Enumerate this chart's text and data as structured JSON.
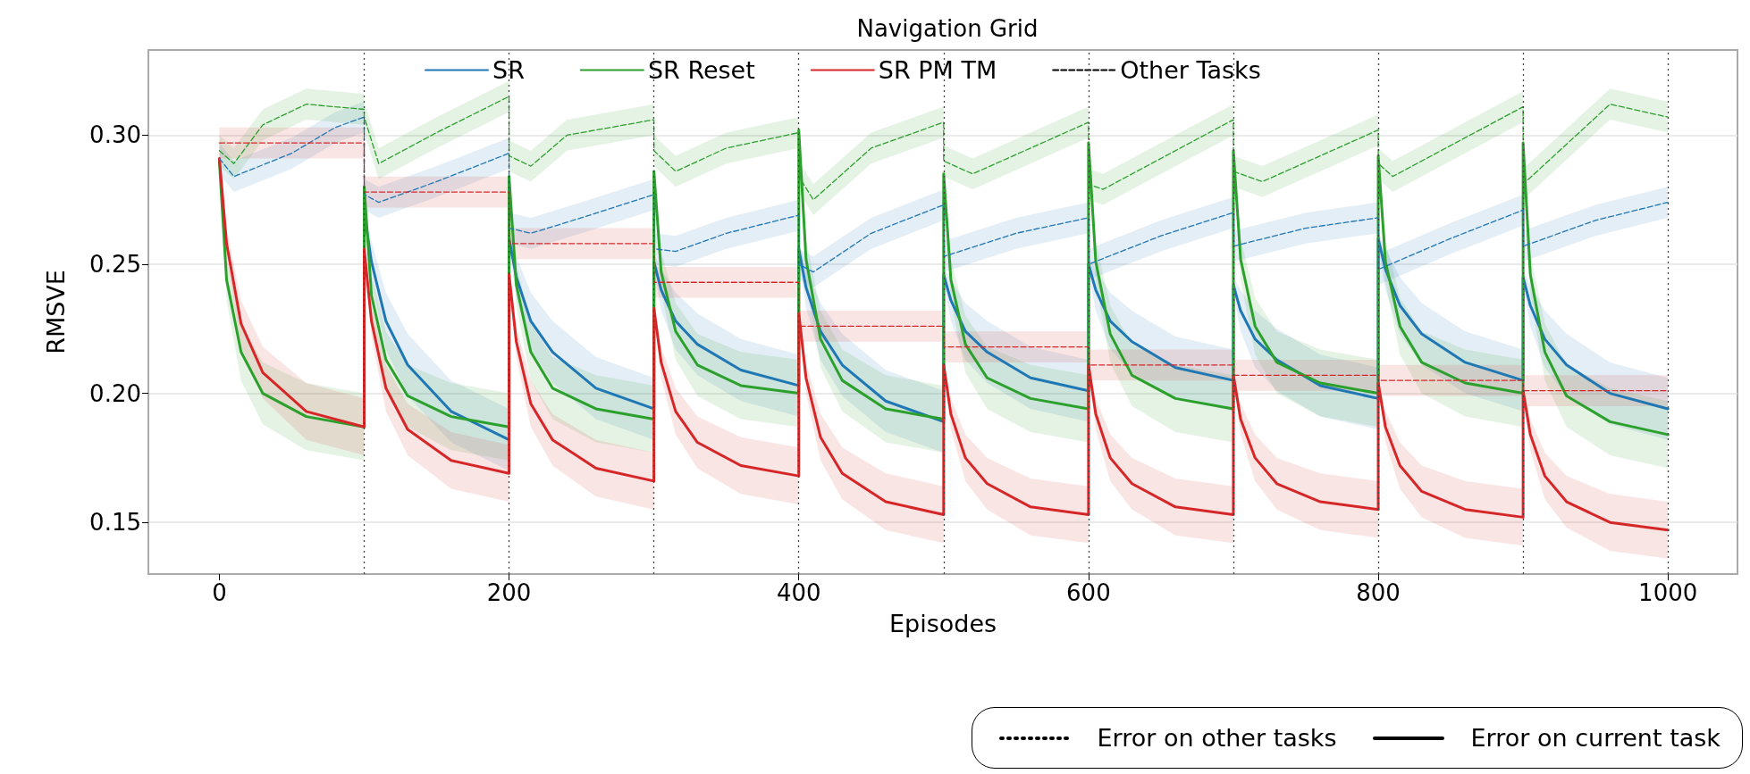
{
  "chart_data": {
    "type": "line",
    "title": "Navigation Grid",
    "xlabel": "Episodes",
    "ylabel": "RMSVE",
    "xlim": [
      -49,
      1048
    ],
    "xticks": [
      0,
      200,
      400,
      600,
      800,
      1000
    ],
    "ylim": [
      0.13,
      0.333
    ],
    "yticks": [
      {
        "value": 0.15,
        "label": "0.15"
      },
      {
        "value": 0.2,
        "label": "0.20"
      },
      {
        "value": 0.25,
        "label": "0.25"
      },
      {
        "value": 0.3,
        "label": "0.30"
      }
    ],
    "grid": "y",
    "legend": "top",
    "marker": "none",
    "x": [
      0,
      5,
      15,
      30,
      60,
      100,
      100,
      105,
      115,
      130,
      160,
      200,
      200,
      205,
      215,
      230,
      260,
      300,
      300,
      305,
      315,
      330,
      360,
      400,
      400,
      405,
      415,
      430,
      460,
      500,
      500,
      505,
      515,
      530,
      560,
      600,
      600,
      605,
      615,
      630,
      660,
      700,
      700,
      705,
      715,
      730,
      760,
      800,
      800,
      805,
      815,
      830,
      860,
      900,
      900,
      905,
      915,
      930,
      960,
      1000
    ],
    "series": [
      {
        "name": "SR",
        "color": "#1f77b4",
        "line_style": "solid",
        "x": [
          100,
          105,
          115,
          130,
          160,
          200,
          200,
          205,
          215,
          230,
          260,
          300,
          300,
          305,
          315,
          330,
          360,
          400,
          400,
          405,
          415,
          430,
          460,
          500,
          500,
          505,
          515,
          530,
          560,
          600,
          600,
          605,
          615,
          630,
          660,
          700,
          700,
          705,
          715,
          730,
          760,
          800,
          800,
          805,
          815,
          830,
          860,
          900,
          900,
          905,
          915,
          930,
          960,
          1000
        ],
        "values": [
          0.27,
          0.251,
          0.228,
          0.211,
          0.193,
          0.182,
          0.26,
          0.245,
          0.228,
          0.216,
          0.202,
          0.194,
          0.251,
          0.24,
          0.228,
          0.219,
          0.209,
          0.203,
          0.256,
          0.241,
          0.224,
          0.211,
          0.197,
          0.189,
          0.246,
          0.236,
          0.224,
          0.216,
          0.206,
          0.201,
          0.25,
          0.24,
          0.228,
          0.22,
          0.21,
          0.205,
          0.242,
          0.232,
          0.221,
          0.213,
          0.203,
          0.198,
          0.26,
          0.248,
          0.234,
          0.223,
          0.212,
          0.205,
          0.245,
          0.234,
          0.221,
          0.211,
          0.2,
          0.194
        ],
        "lower": [
          0.267,
          0.243,
          0.217,
          0.199,
          0.181,
          0.17,
          0.257,
          0.237,
          0.217,
          0.204,
          0.19,
          0.182,
          0.248,
          0.232,
          0.217,
          0.207,
          0.197,
          0.191,
          0.253,
          0.233,
          0.213,
          0.199,
          0.185,
          0.177,
          0.243,
          0.228,
          0.213,
          0.204,
          0.194,
          0.189,
          0.247,
          0.232,
          0.217,
          0.208,
          0.198,
          0.193,
          0.239,
          0.224,
          0.21,
          0.201,
          0.191,
          0.186,
          0.257,
          0.24,
          0.223,
          0.211,
          0.2,
          0.193,
          0.242,
          0.226,
          0.21,
          0.199,
          0.188,
          0.182
        ],
        "upper": [
          0.273,
          0.259,
          0.239,
          0.223,
          0.205,
          0.194,
          0.263,
          0.253,
          0.239,
          0.228,
          0.214,
          0.206,
          0.254,
          0.248,
          0.239,
          0.231,
          0.221,
          0.215,
          0.259,
          0.249,
          0.235,
          0.223,
          0.209,
          0.201,
          0.249,
          0.244,
          0.235,
          0.228,
          0.218,
          0.213,
          0.253,
          0.248,
          0.239,
          0.232,
          0.222,
          0.217,
          0.245,
          0.24,
          0.232,
          0.225,
          0.215,
          0.21,
          0.263,
          0.256,
          0.245,
          0.235,
          0.224,
          0.217,
          0.248,
          0.242,
          0.232,
          0.223,
          0.212,
          0.206
        ]
      },
      {
        "name": "SR Reset",
        "color": "#2ca02c",
        "line_style": "solid",
        "values": [
          0.29,
          0.244,
          0.216,
          0.2,
          0.191,
          0.187,
          0.28,
          0.238,
          0.213,
          0.199,
          0.191,
          0.187,
          0.284,
          0.242,
          0.216,
          0.202,
          0.194,
          0.19,
          0.286,
          0.247,
          0.224,
          0.211,
          0.203,
          0.2,
          0.302,
          0.252,
          0.221,
          0.205,
          0.194,
          0.19,
          0.285,
          0.244,
          0.219,
          0.206,
          0.198,
          0.194,
          0.297,
          0.251,
          0.223,
          0.207,
          0.198,
          0.194,
          0.294,
          0.252,
          0.226,
          0.212,
          0.204,
          0.2,
          0.292,
          0.251,
          0.226,
          0.212,
          0.204,
          0.2,
          0.297,
          0.246,
          0.216,
          0.199,
          0.189,
          0.184
        ],
        "lower": [
          0.288,
          0.236,
          0.205,
          0.188,
          0.178,
          0.174,
          0.278,
          0.23,
          0.202,
          0.187,
          0.178,
          0.174,
          0.282,
          0.234,
          0.205,
          0.19,
          0.181,
          0.177,
          0.284,
          0.239,
          0.213,
          0.199,
          0.19,
          0.187,
          0.3,
          0.244,
          0.21,
          0.193,
          0.181,
          0.177,
          0.283,
          0.236,
          0.208,
          0.194,
          0.185,
          0.181,
          0.295,
          0.243,
          0.212,
          0.195,
          0.185,
          0.181,
          0.292,
          0.244,
          0.215,
          0.2,
          0.191,
          0.187,
          0.29,
          0.243,
          0.215,
          0.2,
          0.191,
          0.187,
          0.295,
          0.238,
          0.205,
          0.187,
          0.176,
          0.171
        ],
        "upper": [
          0.292,
          0.252,
          0.227,
          0.212,
          0.204,
          0.2,
          0.282,
          0.246,
          0.224,
          0.211,
          0.204,
          0.2,
          0.286,
          0.25,
          0.227,
          0.214,
          0.207,
          0.203,
          0.288,
          0.255,
          0.235,
          0.223,
          0.216,
          0.213,
          0.304,
          0.26,
          0.232,
          0.217,
          0.207,
          0.203,
          0.287,
          0.252,
          0.23,
          0.218,
          0.211,
          0.207,
          0.299,
          0.259,
          0.234,
          0.219,
          0.211,
          0.207,
          0.296,
          0.26,
          0.237,
          0.224,
          0.217,
          0.213,
          0.294,
          0.259,
          0.237,
          0.224,
          0.217,
          0.213,
          0.299,
          0.254,
          0.227,
          0.211,
          0.202,
          0.197
        ]
      },
      {
        "name": "SR PM TM",
        "color": "#d62728",
        "line_style": "solid",
        "values": [
          0.291,
          0.258,
          0.227,
          0.208,
          0.193,
          0.187,
          0.256,
          0.228,
          0.202,
          0.186,
          0.174,
          0.169,
          0.246,
          0.22,
          0.196,
          0.182,
          0.171,
          0.166,
          0.233,
          0.212,
          0.193,
          0.181,
          0.172,
          0.168,
          0.231,
          0.206,
          0.183,
          0.169,
          0.158,
          0.153,
          0.211,
          0.192,
          0.175,
          0.165,
          0.156,
          0.153,
          0.211,
          0.192,
          0.175,
          0.165,
          0.156,
          0.153,
          0.207,
          0.19,
          0.175,
          0.165,
          0.158,
          0.155,
          0.204,
          0.187,
          0.172,
          0.162,
          0.155,
          0.152,
          0.201,
          0.184,
          0.168,
          0.158,
          0.15,
          0.147
        ],
        "lower": [
          0.289,
          0.252,
          0.218,
          0.198,
          0.182,
          0.176,
          0.254,
          0.222,
          0.193,
          0.176,
          0.163,
          0.158,
          0.244,
          0.214,
          0.187,
          0.172,
          0.16,
          0.155,
          0.231,
          0.206,
          0.184,
          0.171,
          0.161,
          0.157,
          0.229,
          0.2,
          0.174,
          0.159,
          0.147,
          0.142,
          0.209,
          0.186,
          0.166,
          0.155,
          0.145,
          0.142,
          0.209,
          0.186,
          0.166,
          0.155,
          0.145,
          0.142,
          0.205,
          0.184,
          0.166,
          0.155,
          0.147,
          0.144,
          0.202,
          0.181,
          0.163,
          0.152,
          0.144,
          0.141,
          0.199,
          0.178,
          0.159,
          0.148,
          0.139,
          0.136
        ],
        "upper": [
          0.293,
          0.264,
          0.236,
          0.218,
          0.204,
          0.198,
          0.258,
          0.234,
          0.211,
          0.196,
          0.185,
          0.18,
          0.248,
          0.226,
          0.205,
          0.192,
          0.182,
          0.177,
          0.235,
          0.218,
          0.202,
          0.191,
          0.183,
          0.179,
          0.233,
          0.212,
          0.192,
          0.179,
          0.169,
          0.164,
          0.213,
          0.198,
          0.184,
          0.175,
          0.167,
          0.164,
          0.213,
          0.198,
          0.184,
          0.175,
          0.167,
          0.164,
          0.209,
          0.196,
          0.184,
          0.175,
          0.169,
          0.166,
          0.206,
          0.193,
          0.181,
          0.172,
          0.166,
          0.163,
          0.203,
          0.19,
          0.177,
          0.168,
          0.161,
          0.158
        ]
      },
      {
        "color": "#1f77b4",
        "line_style": "dashed",
        "x": [
          0,
          10,
          50,
          80,
          100,
          100,
          110,
          150,
          200,
          200,
          215,
          250,
          300,
          300,
          315,
          350,
          400,
          400,
          410,
          450,
          500,
          500,
          550,
          600,
          600,
          650,
          700,
          700,
          750,
          800,
          800,
          850,
          900,
          900,
          950,
          1000
        ],
        "values": [
          0.291,
          0.284,
          0.293,
          0.303,
          0.307,
          0.277,
          0.274,
          0.282,
          0.293,
          0.264,
          0.262,
          0.268,
          0.277,
          0.256,
          0.255,
          0.262,
          0.269,
          0.25,
          0.247,
          0.262,
          0.273,
          0.253,
          0.262,
          0.268,
          0.25,
          0.261,
          0.27,
          0.257,
          0.264,
          0.268,
          0.248,
          0.26,
          0.271,
          0.257,
          0.267,
          0.274
        ],
        "lower": [
          0.285,
          0.278,
          0.287,
          0.297,
          0.301,
          0.271,
          0.268,
          0.276,
          0.287,
          0.258,
          0.256,
          0.262,
          0.271,
          0.25,
          0.249,
          0.256,
          0.263,
          0.244,
          0.241,
          0.256,
          0.267,
          0.247,
          0.256,
          0.262,
          0.244,
          0.255,
          0.264,
          0.251,
          0.258,
          0.262,
          0.242,
          0.254,
          0.265,
          0.251,
          0.261,
          0.268
        ],
        "upper": [
          0.297,
          0.29,
          0.299,
          0.309,
          0.313,
          0.283,
          0.28,
          0.288,
          0.299,
          0.27,
          0.268,
          0.274,
          0.283,
          0.262,
          0.261,
          0.268,
          0.275,
          0.256,
          0.253,
          0.268,
          0.279,
          0.259,
          0.268,
          0.274,
          0.256,
          0.267,
          0.276,
          0.263,
          0.27,
          0.274,
          0.254,
          0.266,
          0.277,
          0.263,
          0.273,
          0.28
        ]
      },
      {
        "color": "#2ca02c",
        "line_style": "dashed",
        "x": [
          0,
          10,
          30,
          60,
          100,
          100,
          110,
          150,
          200,
          200,
          215,
          240,
          300,
          300,
          315,
          350,
          400,
          400,
          410,
          450,
          500,
          500,
          520,
          600,
          600,
          610,
          700,
          700,
          720,
          800,
          800,
          810,
          900,
          900,
          960,
          1000
        ],
        "values": [
          0.294,
          0.289,
          0.304,
          0.312,
          0.31,
          0.307,
          0.289,
          0.301,
          0.315,
          0.292,
          0.288,
          0.3,
          0.306,
          0.294,
          0.286,
          0.295,
          0.301,
          0.284,
          0.275,
          0.295,
          0.305,
          0.29,
          0.285,
          0.305,
          0.281,
          0.279,
          0.306,
          0.286,
          0.282,
          0.302,
          0.289,
          0.284,
          0.311,
          0.281,
          0.312,
          0.307
        ],
        "lower": [
          0.288,
          0.283,
          0.298,
          0.306,
          0.304,
          0.301,
          0.283,
          0.295,
          0.309,
          0.286,
          0.282,
          0.294,
          0.3,
          0.288,
          0.28,
          0.289,
          0.295,
          0.278,
          0.269,
          0.289,
          0.299,
          0.284,
          0.279,
          0.299,
          0.275,
          0.273,
          0.3,
          0.28,
          0.276,
          0.296,
          0.283,
          0.278,
          0.305,
          0.275,
          0.306,
          0.301
        ],
        "upper": [
          0.3,
          0.295,
          0.31,
          0.318,
          0.316,
          0.313,
          0.295,
          0.307,
          0.321,
          0.298,
          0.294,
          0.306,
          0.312,
          0.3,
          0.292,
          0.301,
          0.307,
          0.29,
          0.281,
          0.301,
          0.311,
          0.296,
          0.291,
          0.311,
          0.287,
          0.285,
          0.312,
          0.292,
          0.288,
          0.308,
          0.295,
          0.29,
          0.317,
          0.287,
          0.318,
          0.313
        ]
      },
      {
        "color": "#d62728",
        "line_style": "dashed",
        "x": [
          0,
          100,
          100,
          200,
          200,
          300,
          300,
          400,
          400,
          500,
          500,
          600,
          600,
          700,
          700,
          800,
          800,
          900,
          900,
          1000
        ],
        "values": [
          0.297,
          0.297,
          0.278,
          0.278,
          0.258,
          0.258,
          0.243,
          0.243,
          0.226,
          0.226,
          0.218,
          0.218,
          0.211,
          0.211,
          0.207,
          0.207,
          0.205,
          0.205,
          0.201,
          0.201
        ],
        "lower": [
          0.291,
          0.291,
          0.272,
          0.272,
          0.252,
          0.252,
          0.237,
          0.237,
          0.22,
          0.22,
          0.212,
          0.212,
          0.205,
          0.205,
          0.201,
          0.201,
          0.199,
          0.199,
          0.195,
          0.195
        ],
        "upper": [
          0.303,
          0.303,
          0.284,
          0.284,
          0.264,
          0.264,
          0.249,
          0.249,
          0.232,
          0.232,
          0.224,
          0.224,
          0.217,
          0.217,
          0.213,
          0.213,
          0.211,
          0.211,
          0.207,
          0.207
        ]
      },
      {
        "name": "Other Tasks",
        "color": "#000000",
        "line_style": "dashed",
        "values": [
          null,
          null,
          null,
          null,
          null,
          null,
          null,
          null,
          null,
          null,
          null,
          null,
          null,
          null,
          null,
          null,
          null,
          null,
          null,
          null,
          null,
          null,
          null,
          null,
          null,
          null,
          null,
          null,
          null,
          null,
          null,
          null,
          null,
          null,
          null,
          null,
          null,
          null,
          null,
          null,
          null,
          null,
          null,
          null,
          null,
          null,
          null,
          null,
          null,
          null,
          null,
          null,
          null,
          null,
          null,
          null,
          null,
          null,
          null,
          null
        ]
      }
    ],
    "annotations": [
      "Error on other tasks",
      "Error on current task"
    ],
    "ref_lines": [
      {
        "axis": "x",
        "value": 100,
        "color": "#444444",
        "line_style": "dotted"
      },
      {
        "axis": "x",
        "value": 200,
        "color": "#444444",
        "line_style": "dotted"
      },
      {
        "axis": "x",
        "value": 300,
        "color": "#444444",
        "line_style": "dotted"
      },
      {
        "axis": "x",
        "value": 400,
        "color": "#444444",
        "line_style": "dotted"
      },
      {
        "axis": "x",
        "value": 500,
        "color": "#444444",
        "line_style": "dotted"
      },
      {
        "axis": "x",
        "value": 600,
        "color": "#444444",
        "line_style": "dotted"
      },
      {
        "axis": "x",
        "value": 700,
        "color": "#444444",
        "line_style": "dotted"
      },
      {
        "axis": "x",
        "value": 800,
        "color": "#444444",
        "line_style": "dotted"
      },
      {
        "axis": "x",
        "value": 900,
        "color": "#444444",
        "line_style": "dotted"
      },
      {
        "axis": "x",
        "value": 1000,
        "color": "#444444",
        "line_style": "dotted"
      }
    ]
  }
}
